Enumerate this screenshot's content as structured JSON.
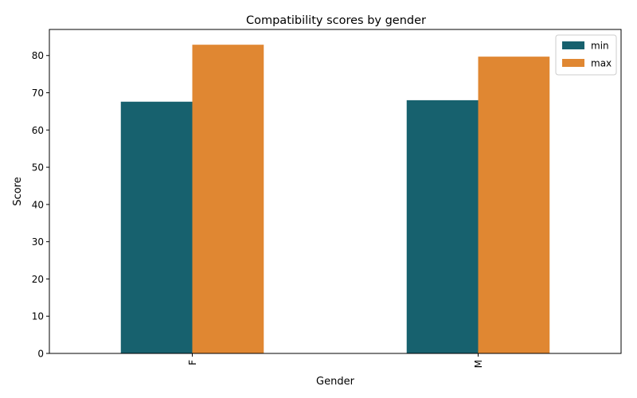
{
  "chart_data": {
    "type": "bar",
    "title": "Compatibility scores by gender",
    "xlabel": "Gender",
    "ylabel": "Score",
    "categories": [
      "F",
      "M"
    ],
    "series": [
      {
        "name": "min",
        "values": [
          67.6,
          68.0
        ],
        "color": "#17616e"
      },
      {
        "name": "max",
        "values": [
          82.9,
          79.7
        ],
        "color": "#e08732"
      }
    ],
    "ylim": [
      0,
      87
    ],
    "yticks": [
      0,
      10,
      20,
      30,
      40,
      50,
      60,
      70,
      80
    ],
    "ytick_labels": [
      "0",
      "10",
      "20",
      "30",
      "40",
      "50",
      "60",
      "70",
      "80"
    ],
    "legend_position": "top-right",
    "grid": false
  }
}
